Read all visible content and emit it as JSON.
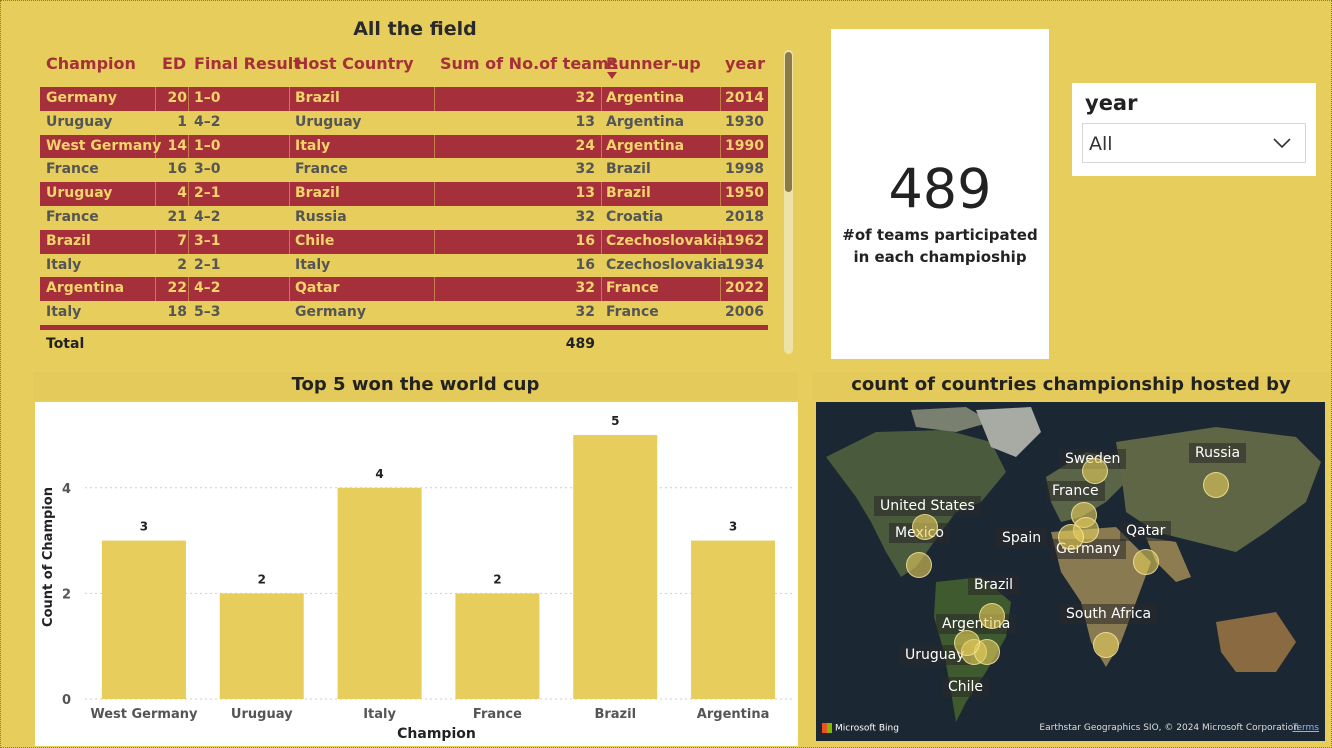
{
  "table": {
    "title": "All the field",
    "headers": {
      "champion": "Champion",
      "ed": "ED",
      "final_result": "Final Result",
      "host_country": "Host Country",
      "teams": "Sum of No.of teams",
      "runner_up": "Runner-up",
      "year": "year"
    },
    "rows": [
      {
        "champion": "Germany",
        "ed": "20",
        "final": "1–0",
        "host": "Brazil",
        "teams": "32",
        "runner": "Argentina",
        "year": "2014"
      },
      {
        "champion": "Uruguay",
        "ed": "1",
        "final": "4–2",
        "host": "Uruguay",
        "teams": "13",
        "runner": "Argentina",
        "year": "1930"
      },
      {
        "champion": "West Germany",
        "ed": "14",
        "final": "1–0",
        "host": "Italy",
        "teams": "24",
        "runner": "Argentina",
        "year": "1990"
      },
      {
        "champion": "France",
        "ed": "16",
        "final": "3–0",
        "host": "France",
        "teams": "32",
        "runner": "Brazil",
        "year": "1998"
      },
      {
        "champion": "Uruguay",
        "ed": "4",
        "final": "2–1",
        "host": "Brazil",
        "teams": "13",
        "runner": "Brazil",
        "year": "1950"
      },
      {
        "champion": "France",
        "ed": "21",
        "final": "4–2",
        "host": "Russia",
        "teams": "32",
        "runner": "Croatia",
        "year": "2018"
      },
      {
        "champion": "Brazil",
        "ed": "7",
        "final": "3–1",
        "host": "Chile",
        "teams": "16",
        "runner": "Czechoslovakia",
        "year": "1962"
      },
      {
        "champion": "Italy",
        "ed": "2",
        "final": "2–1",
        "host": "Italy",
        "teams": "16",
        "runner": "Czechoslovakia",
        "year": "1934"
      },
      {
        "champion": "Argentina",
        "ed": "22",
        "final": "4–2",
        "host": "Qatar",
        "teams": "32",
        "runner": "France",
        "year": "2022"
      },
      {
        "champion": "Italy",
        "ed": "18",
        "final": "5–3",
        "host": "Germany",
        "teams": "32",
        "runner": "France",
        "year": "2006"
      }
    ],
    "total_label": "Total",
    "total_value": "489"
  },
  "kpi": {
    "value": "489",
    "label_line1": "#of teams participated",
    "label_line2": "in each champioship"
  },
  "slicer": {
    "title": "year",
    "value": "All"
  },
  "bar_chart_title": "Top 5 won the world cup",
  "map": {
    "title": "count of countries championship hosted by",
    "labels": [
      "Sweden",
      "Russia",
      "France",
      "United States",
      "Mexico",
      "Spain",
      "Germany",
      "Qatar",
      "Brazil",
      "South Africa",
      "Argentina",
      "Uruguay",
      "Chile"
    ],
    "provider": "Microsoft Bing",
    "attribution": "Earthstar Geographics SIO, © 2024 Microsoft Corporation",
    "terms": "Terms"
  },
  "chart_data": {
    "type": "bar",
    "title": "Top 5 won the world cup",
    "categories": [
      "West Germany",
      "Uruguay",
      "Italy",
      "France",
      "Brazil",
      "Argentina"
    ],
    "values": [
      3,
      2,
      4,
      2,
      5,
      3
    ],
    "xlabel": "Champion",
    "ylabel": "Count of Champion",
    "ylim": [
      0,
      5
    ],
    "yticks": [
      0,
      2,
      4
    ],
    "bar_color": "#e6cd5c",
    "grid": true
  },
  "colors": {
    "background": "#e6cd5c",
    "accent": "#a52f3a",
    "highlight_text": "#f1d46a"
  }
}
